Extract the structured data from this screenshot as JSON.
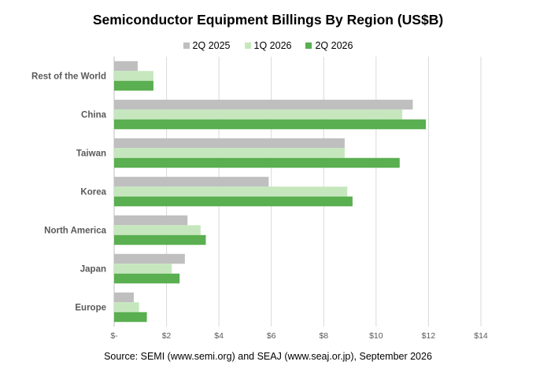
{
  "chart_data": {
    "type": "bar",
    "orientation": "horizontal",
    "title": "Semiconductor Equipment Billings By Region (US$B)",
    "categories": [
      "Rest of the World",
      "China",
      "Taiwan",
      "Korea",
      "North America",
      "Japan",
      "Europe"
    ],
    "series": [
      {
        "name": "2Q 2025",
        "color": "#BFBFBF",
        "values": [
          0.9,
          11.4,
          8.8,
          5.9,
          2.8,
          2.7,
          0.75
        ]
      },
      {
        "name": "1Q 2026",
        "color": "#C6E7BE",
        "values": [
          1.5,
          11.0,
          8.8,
          8.9,
          3.3,
          2.2,
          0.95
        ]
      },
      {
        "name": "2Q 2026",
        "color": "#5AAF50",
        "values": [
          1.5,
          11.9,
          10.9,
          9.1,
          3.5,
          2.5,
          1.25
        ]
      }
    ],
    "xlim": [
      0,
      14
    ],
    "xticks": [
      0,
      2,
      4,
      6,
      8,
      10,
      12,
      14
    ],
    "xtick_labels": [
      "$-",
      "$2",
      "$4",
      "$6",
      "$8",
      "$10",
      "$12",
      "$14"
    ],
    "grid": "vertical",
    "legend_position": "top",
    "xlabel": "",
    "ylabel": "",
    "source": "Source: SEMI (www.semi.org) and SEAJ (www.seaj.or.jp), September 2026"
  }
}
